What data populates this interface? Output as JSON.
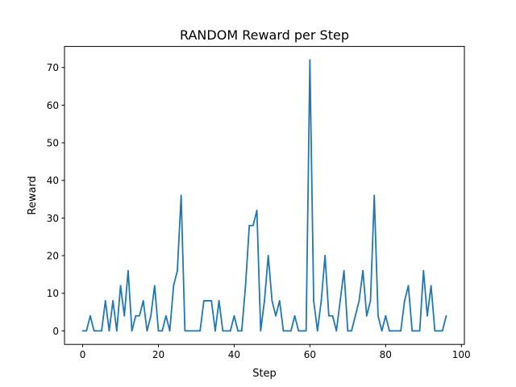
{
  "chart_data": {
    "type": "line",
    "title": "RANDOM Reward per Step",
    "xlabel": "Step",
    "ylabel": "Reward",
    "xlim": [
      -4.8,
      100.8
    ],
    "ylim": [
      -3.6,
      75.6
    ],
    "xticks": [
      0,
      20,
      40,
      60,
      80,
      100
    ],
    "yticks": [
      0,
      10,
      20,
      30,
      40,
      50,
      60,
      70
    ],
    "grid": false,
    "color": "#1f77b4",
    "x": [
      0,
      1,
      2,
      3,
      4,
      5,
      6,
      7,
      8,
      9,
      10,
      11,
      12,
      13,
      14,
      15,
      16,
      17,
      18,
      19,
      20,
      21,
      22,
      23,
      24,
      25,
      26,
      27,
      28,
      29,
      30,
      31,
      32,
      33,
      34,
      35,
      36,
      37,
      38,
      39,
      40,
      41,
      42,
      43,
      44,
      45,
      46,
      47,
      48,
      49,
      50,
      51,
      52,
      53,
      54,
      55,
      56,
      57,
      58,
      59,
      60,
      61,
      62,
      63,
      64,
      65,
      66,
      67,
      68,
      69,
      70,
      71,
      72,
      73,
      74,
      75,
      76,
      77,
      78,
      79,
      80,
      81,
      82,
      83,
      84,
      85,
      86,
      87,
      88,
      89,
      90,
      91,
      92,
      93,
      94,
      95,
      96
    ],
    "y": [
      0,
      0,
      4,
      0,
      0,
      0,
      8,
      0,
      8,
      0,
      12,
      4,
      16,
      0,
      4,
      4,
      8,
      0,
      4,
      12,
      0,
      0,
      4,
      0,
      12,
      16,
      36,
      0,
      0,
      0,
      0,
      0,
      8,
      8,
      8,
      0,
      8,
      0,
      0,
      0,
      4,
      0,
      0,
      12,
      28,
      28,
      32,
      0,
      8,
      20,
      8,
      4,
      8,
      0,
      0,
      0,
      4,
      0,
      0,
      0,
      72,
      8,
      0,
      8,
      20,
      4,
      4,
      0,
      8,
      16,
      0,
      0,
      4,
      8,
      16,
      4,
      8,
      36,
      4,
      0,
      4,
      0,
      0,
      0,
      0,
      8,
      12,
      0,
      0,
      0,
      16,
      4,
      12,
      0,
      0,
      0,
      4
    ]
  }
}
